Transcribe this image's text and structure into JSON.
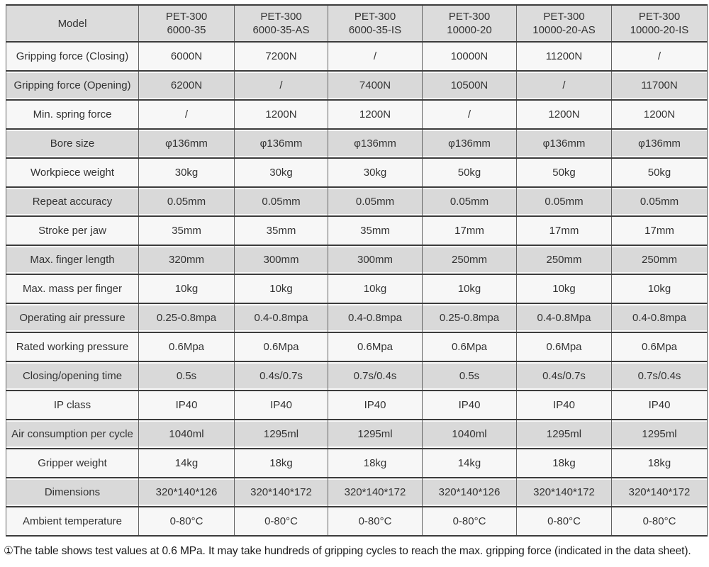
{
  "table": {
    "corner_label": "Model",
    "header_models": [
      {
        "line1": "PET-300",
        "line2": "6000-35"
      },
      {
        "line1": "PET-300",
        "line2": "6000-35-AS"
      },
      {
        "line1": "PET-300",
        "line2": "6000-35-IS"
      },
      {
        "line1": "PET-300",
        "line2": "10000-20"
      },
      {
        "line1": "PET-300",
        "line2": "10000-20-AS"
      },
      {
        "line1": "PET-300",
        "line2": "10000-20-IS"
      }
    ],
    "rows": [
      {
        "label": "Gripping force (Closing)",
        "values": [
          "6000N",
          "7200N",
          "/",
          "10000N",
          "11200N",
          "/"
        ]
      },
      {
        "label": "Gripping force (Opening)",
        "values": [
          "6200N",
          "/",
          "7400N",
          "10500N",
          "/",
          "11700N"
        ]
      },
      {
        "label": "Min. spring force",
        "values": [
          "/",
          "1200N",
          "1200N",
          "/",
          "1200N",
          "1200N"
        ]
      },
      {
        "label": "Bore size",
        "values": [
          "φ136mm",
          "φ136mm",
          "φ136mm",
          "φ136mm",
          "φ136mm",
          "φ136mm"
        ]
      },
      {
        "label": "Workpiece weight",
        "values": [
          "30kg",
          "30kg",
          "30kg",
          "50kg",
          "50kg",
          "50kg"
        ]
      },
      {
        "label": "Repeat accuracy",
        "values": [
          "0.05mm",
          "0.05mm",
          "0.05mm",
          "0.05mm",
          "0.05mm",
          "0.05mm"
        ]
      },
      {
        "label": "Stroke per jaw",
        "values": [
          "35mm",
          "35mm",
          "35mm",
          "17mm",
          "17mm",
          "17mm"
        ]
      },
      {
        "label": "Max. finger length",
        "values": [
          "320mm",
          "300mm",
          "300mm",
          "250mm",
          "250mm",
          "250mm"
        ]
      },
      {
        "label": "Max. mass per finger",
        "values": [
          "10kg",
          "10kg",
          "10kg",
          "10kg",
          "10kg",
          "10kg"
        ]
      },
      {
        "label": "Operating air pressure",
        "values": [
          "0.25-0.8mpa",
          "0.4-0.8mpa",
          "0.4-0.8mpa",
          "0.25-0.8mpa",
          "0.4-0.8Mpa",
          "0.4-0.8mpa"
        ]
      },
      {
        "label": "Rated working pressure",
        "values": [
          "0.6Mpa",
          "0.6Mpa",
          "0.6Mpa",
          "0.6Mpa",
          "0.6Mpa",
          "0.6Mpa"
        ]
      },
      {
        "label": "Closing/opening time",
        "values": [
          "0.5s",
          "0.4s/0.7s",
          "0.7s/0.4s",
          "0.5s",
          "0.4s/0.7s",
          "0.7s/0.4s"
        ]
      },
      {
        "label": "IP class",
        "values": [
          "IP40",
          "IP40",
          "IP40",
          "IP40",
          "IP40",
          "IP40"
        ]
      },
      {
        "label": "Air consumption per cycle",
        "values": [
          "1040ml",
          "1295ml",
          "1295ml",
          "1040ml",
          "1295ml",
          "1295ml"
        ]
      },
      {
        "label": "Gripper weight",
        "values": [
          "14kg",
          "18kg",
          "18kg",
          "14kg",
          "18kg",
          "18kg"
        ]
      },
      {
        "label": "Dimensions",
        "values": [
          "320*140*126",
          "320*140*172",
          "320*140*172",
          "320*140*126",
          "320*140*172",
          "320*140*172"
        ]
      },
      {
        "label": "Ambient temperature",
        "values": [
          "0-80°C",
          "0-80°C",
          "0-80°C",
          "0-80°C",
          "0-80°C",
          "0-80°C"
        ]
      }
    ]
  },
  "footnote": "①The table shows test values at 0.6 MPa. It may take hundreds of gripping cycles to reach the max. gripping force (indicated in the data sheet).",
  "colors": {
    "header_bg": "#dcdcdc",
    "row_stripe": "#d9d9d9",
    "row_light": "#f7f7f7",
    "border": "#3c3c3c"
  }
}
